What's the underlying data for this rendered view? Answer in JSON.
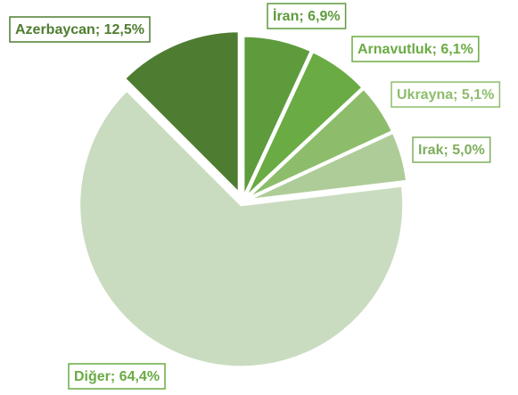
{
  "chart_data": {
    "type": "pie",
    "values": [
      6.9,
      6.1,
      5.1,
      5.0,
      64.4,
      12.5
    ],
    "value_labels": [
      "İran; 6,9%",
      "Arnavutluk; 6,1%",
      "Ukrayna; 5,1%",
      "Irak; 5,0%",
      "Diğer; 64,4%",
      "Azerbaycan; 12,5%"
    ],
    "colors": [
      "#5e9b3d",
      "#6aab44",
      "#8dbd6b",
      "#aecc98",
      "#cadcc0",
      "#4e7d31"
    ]
  }
}
